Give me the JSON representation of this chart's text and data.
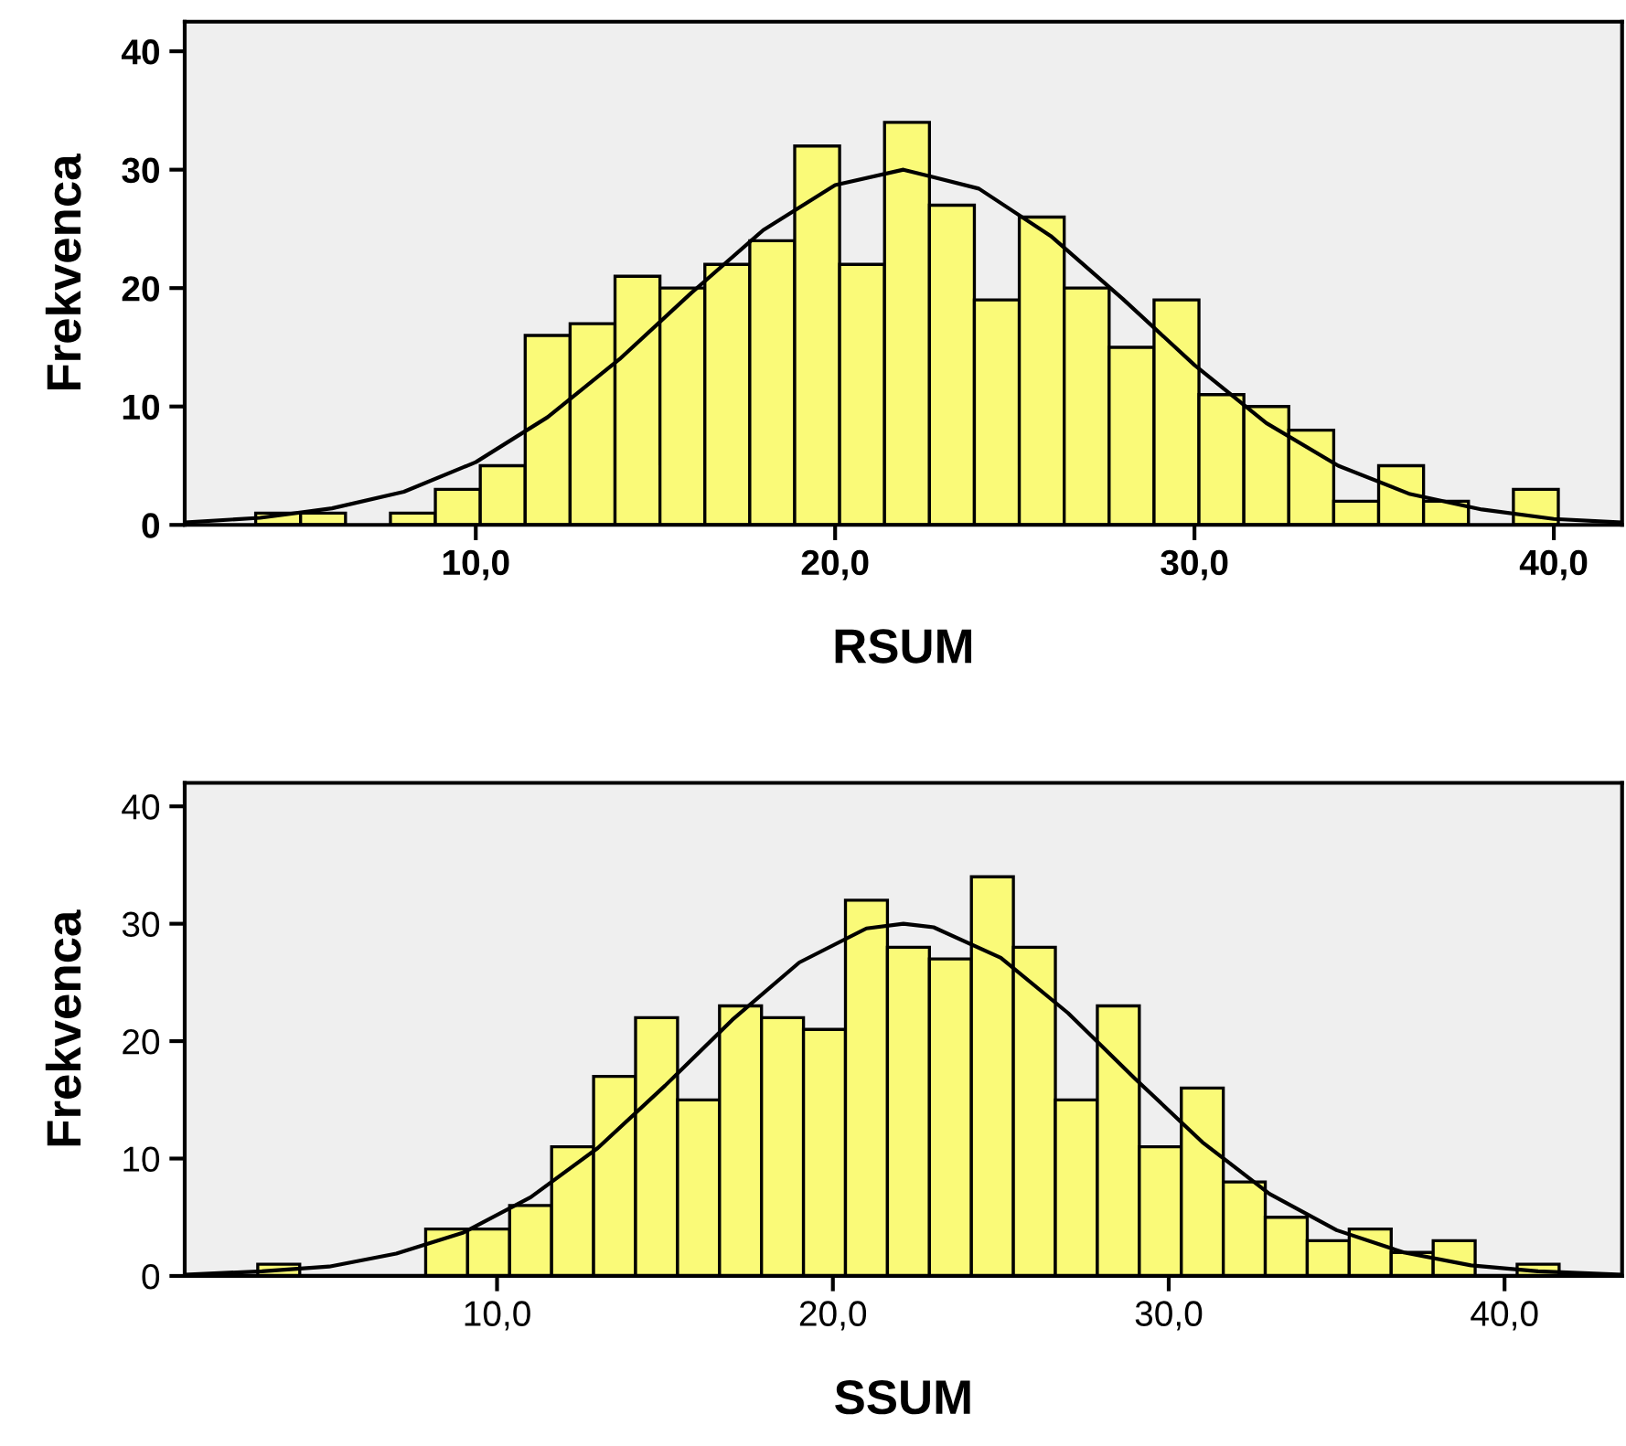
{
  "chart_data": [
    {
      "type": "histogram",
      "xlabel": "RSUM",
      "ylabel": "Frekvenca",
      "color": "#fafa78",
      "bins": [
        3.875,
        5.125,
        6.375,
        7.625,
        8.875,
        10.125,
        11.375,
        12.625,
        13.875,
        15.125,
        16.375,
        17.625,
        18.875,
        20.125,
        21.375,
        22.625,
        23.875,
        25.125,
        26.375,
        27.625,
        28.875,
        30.125,
        31.375,
        32.625,
        33.875,
        35.125,
        36.375,
        37.625,
        38.875,
        40.125
      ],
      "values": [
        1,
        1,
        0,
        1,
        3,
        5,
        16,
        17,
        21,
        20,
        22,
        24,
        32,
        22,
        34,
        27,
        19,
        26,
        20,
        15,
        19,
        11,
        10,
        8,
        2,
        5,
        2,
        0,
        3
      ],
      "series": [
        {
          "type": "line",
          "color": "#000000",
          "x": [
            1.9,
            4,
            6,
            8,
            10,
            12,
            14,
            16,
            18,
            20,
            21.9,
            24,
            26,
            28,
            30,
            32,
            34,
            36,
            38,
            40,
            41.9
          ],
          "values": [
            0.2,
            0.6,
            1.4,
            2.8,
            5.3,
            9.1,
            14.0,
            19.6,
            24.9,
            28.7,
            30,
            28.4,
            24.4,
            19.1,
            13.5,
            8.6,
            5.0,
            2.6,
            1.3,
            0.5,
            0.2
          ]
        }
      ],
      "xlim": [
        1.9,
        41.9
      ],
      "xticks": [
        {
          "value": 10,
          "label": "10,0"
        },
        {
          "value": 20,
          "label": "20,0"
        },
        {
          "value": 30,
          "label": "30,0"
        },
        {
          "value": 40,
          "label": "40,0"
        }
      ],
      "ylim": [
        0,
        42.5
      ],
      "yticks": [
        0,
        10,
        20,
        30,
        40
      ],
      "grid": false,
      "legend": false
    },
    {
      "type": "histogram",
      "xlabel": "SSUM",
      "ylabel": "Frekvenca",
      "color": "#fafa78",
      "bins": [
        2.875,
        4.125,
        5.375,
        6.625,
        7.875,
        9.125,
        10.375,
        11.625,
        12.875,
        14.125,
        15.375,
        16.625,
        17.875,
        19.125,
        20.375,
        21.625,
        22.875,
        24.125,
        25.375,
        26.625,
        27.875,
        29.125,
        30.375,
        31.625,
        32.875,
        34.125,
        35.375,
        36.625,
        37.875,
        39.125,
        40.375,
        41.625
      ],
      "values": [
        1,
        0,
        0,
        0,
        4,
        4,
        6,
        11,
        17,
        22,
        15,
        23,
        22,
        21,
        32,
        28,
        27,
        34,
        28,
        15,
        23,
        11,
        16,
        8,
        5,
        3,
        4,
        2,
        3,
        0,
        1
      ],
      "series": [
        {
          "type": "line",
          "color": "#000000",
          "x": [
            0.7,
            3,
            5,
            7,
            9,
            11,
            13,
            15,
            17,
            19,
            21,
            22.1,
            23,
            25,
            27,
            29,
            31,
            33,
            35,
            37,
            39,
            41,
            43.5
          ],
          "values": [
            0.1,
            0.4,
            0.8,
            1.9,
            3.7,
            6.7,
            10.9,
            16.2,
            21.8,
            26.7,
            29.6,
            30,
            29.7,
            27.1,
            22.4,
            16.8,
            11.4,
            7.0,
            3.9,
            2.0,
            0.9,
            0.4,
            0.1
          ]
        }
      ],
      "xlim": [
        0.7,
        43.5
      ],
      "xticks": [
        {
          "value": 10,
          "label": "10,0"
        },
        {
          "value": 20,
          "label": "20,0"
        },
        {
          "value": 30,
          "label": "30,0"
        },
        {
          "value": 40,
          "label": "40,0"
        }
      ],
      "ylim": [
        0,
        42
      ],
      "yticks": [
        0,
        10,
        20,
        30,
        40
      ],
      "grid": false,
      "legend": false
    }
  ]
}
